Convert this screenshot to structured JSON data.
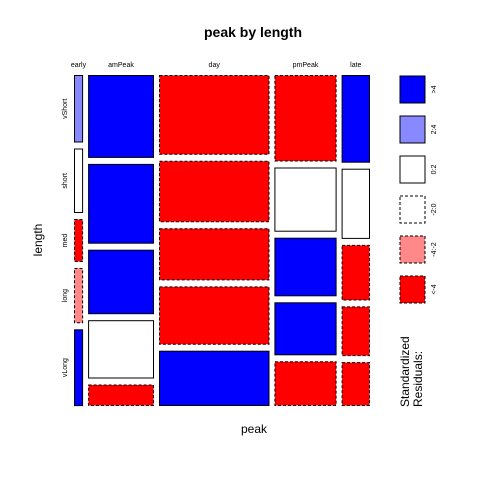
{
  "chart_data": {
    "type": "mosaic",
    "title": "peak by length",
    "xlabel": "peak",
    "ylabel": "length",
    "columns": [
      "early",
      "amPeak",
      "day",
      "pmPeak",
      "late"
    ],
    "rows": [
      "vShort",
      "short",
      "med",
      "long",
      "vLong"
    ],
    "column_proportions": [
      0.032,
      0.232,
      0.389,
      0.219,
      0.1
    ],
    "cell_proportions": [
      [
        0.22,
        0.27,
        0.26,
        0.31,
        0.3
      ],
      [
        0.21,
        0.26,
        0.2,
        0.23,
        0.24
      ],
      [
        0.14,
        0.21,
        0.17,
        0.21,
        0.19
      ],
      [
        0.18,
        0.19,
        0.19,
        0.19,
        0.17
      ],
      [
        0.25,
        0.07,
        0.18,
        0.16,
        0.15
      ]
    ],
    "residual_category": [
      [
        "r2to4",
        "r_gt4",
        "r_lt_neg4",
        "r_lt_neg4",
        "r_gt4"
      ],
      [
        "r0to2",
        "r_gt4",
        "r_lt_neg4",
        "r0to2",
        "r0to2"
      ],
      [
        "r_lt_neg4",
        "r_gt4",
        "r_lt_neg4",
        "r_gt4",
        "r_lt_neg4"
      ],
      [
        "rneg4to2",
        "r0to2",
        "r_lt_neg4",
        "r_gt4",
        "r_lt_neg4"
      ],
      [
        "r_gt4",
        "r_lt_neg4",
        "r_gt4",
        "r_lt_neg4",
        "r_lt_neg4"
      ]
    ],
    "legend": {
      "title_line1": "Standardized",
      "title_line2": "Residuals:",
      "placement": "right",
      "items": [
        {
          "key": "r_gt4",
          "label": ">4",
          "color": "#0000ff",
          "border": "solid"
        },
        {
          "key": "r2to4",
          "label": "2:4",
          "color": "#8888ff",
          "border": "solid"
        },
        {
          "key": "r0to2",
          "label": "0:2",
          "color": "#ffffff",
          "border": "solid"
        },
        {
          "key": "rneg2to0",
          "label": "-2:0",
          "color": "#ffffff",
          "border": "dashed"
        },
        {
          "key": "rneg4to2",
          "label": "-4:-2",
          "color": "#ff8888",
          "border": "dashed"
        },
        {
          "key": "r_lt_neg4",
          "label": "<-4",
          "color": "#ff0000",
          "border": "dashed"
        }
      ]
    }
  }
}
